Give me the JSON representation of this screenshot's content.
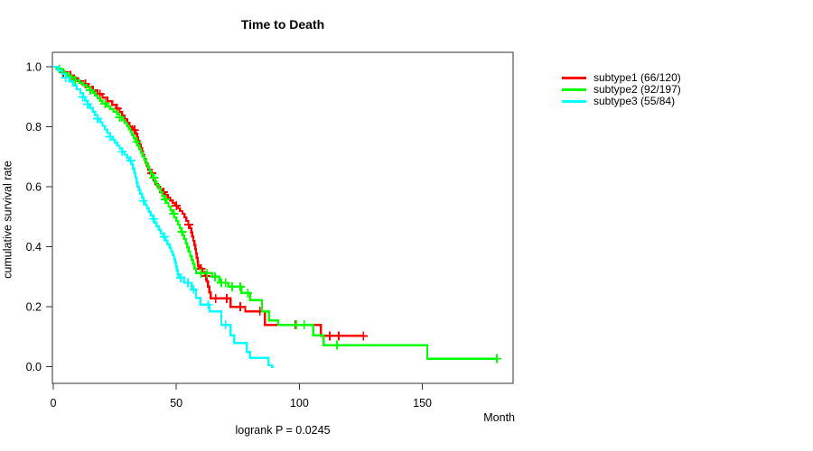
{
  "title": "Time to Death",
  "x_axis": {
    "label": "Month",
    "ticks": [
      0,
      50,
      100,
      150
    ]
  },
  "y_axis": {
    "label": "cumulative survival rate",
    "ticks": [
      0.0,
      0.2,
      0.4,
      0.6,
      0.8,
      1.0
    ]
  },
  "footer": "logrank P = 0.0245",
  "colors": {
    "axis": "#333333",
    "text": "#000000"
  },
  "chart_data": {
    "type": "line",
    "variant": "kaplan-meier-step",
    "title": "Time to Death",
    "xlabel": "Month",
    "ylabel": "cumulative survival rate",
    "xlim": [
      0,
      187
    ],
    "ylim": [
      0.0,
      1.0
    ],
    "x_ticks": [
      0,
      50,
      100,
      150
    ],
    "y_ticks": [
      0.0,
      0.2,
      0.4,
      0.6,
      0.8,
      1.0
    ],
    "annotation": "logrank P = 0.0245",
    "legend_position": "right-outside",
    "grid": false,
    "series": [
      {
        "name": "subtype1 (66/120)",
        "color": "#FF0000",
        "steps": [
          [
            0,
            1
          ],
          [
            2,
            0.99
          ],
          [
            4,
            0.981
          ],
          [
            6,
            0.971
          ],
          [
            8,
            0.962
          ],
          [
            10,
            0.952
          ],
          [
            12,
            0.943
          ],
          [
            14,
            0.933
          ],
          [
            16,
            0.921
          ],
          [
            18,
            0.909
          ],
          [
            20,
            0.897
          ],
          [
            22,
            0.885
          ],
          [
            24,
            0.873
          ],
          [
            25.5,
            0.861
          ],
          [
            27,
            0.849
          ],
          [
            28,
            0.837
          ],
          [
            29,
            0.825
          ],
          [
            30,
            0.813
          ],
          [
            31,
            0.801
          ],
          [
            32,
            0.795
          ],
          [
            33,
            0.789
          ],
          [
            33.5,
            0.777
          ],
          [
            34,
            0.765
          ],
          [
            34.5,
            0.753
          ],
          [
            35,
            0.741
          ],
          [
            35.5,
            0.729
          ],
          [
            36,
            0.717
          ],
          [
            36.5,
            0.705
          ],
          [
            37,
            0.693
          ],
          [
            37.5,
            0.681
          ],
          [
            38,
            0.669
          ],
          [
            38.7,
            0.657
          ],
          [
            39.4,
            0.645
          ],
          [
            40.1,
            0.633
          ],
          [
            40.8,
            0.621
          ],
          [
            41.5,
            0.609
          ],
          [
            42.5,
            0.6
          ],
          [
            43.5,
            0.591
          ],
          [
            44.5,
            0.582
          ],
          [
            45.5,
            0.573
          ],
          [
            46.5,
            0.564
          ],
          [
            47.5,
            0.555
          ],
          [
            48.5,
            0.546
          ],
          [
            49.5,
            0.537
          ],
          [
            50.5,
            0.528
          ],
          [
            51.5,
            0.519
          ],
          [
            52.5,
            0.51
          ],
          [
            53.3,
            0.498
          ],
          [
            54.1,
            0.486
          ],
          [
            54.9,
            0.474
          ],
          [
            55.6,
            0.462
          ],
          [
            56.1,
            0.448
          ],
          [
            56.5,
            0.434
          ],
          [
            56.9,
            0.42
          ],
          [
            57.3,
            0.406
          ],
          [
            57.7,
            0.392
          ],
          [
            58,
            0.378
          ],
          [
            58.3,
            0.364
          ],
          [
            58.6,
            0.35
          ],
          [
            58.9,
            0.336
          ],
          [
            59.2,
            0.327
          ],
          [
            60.5,
            0.315
          ],
          [
            61.7,
            0.303
          ],
          [
            62.3,
            0.285
          ],
          [
            62.9,
            0.267
          ],
          [
            63.4,
            0.248
          ],
          [
            64,
            0.228
          ],
          [
            72,
            0.2
          ],
          [
            78,
            0.185
          ],
          [
            86,
            0.14
          ],
          [
            108.7,
            0.103
          ]
        ],
        "censors": [
          [
            4,
            0.981
          ],
          [
            7,
            0.971
          ],
          [
            13,
            0.943
          ],
          [
            19,
            0.909
          ],
          [
            26,
            0.861
          ],
          [
            33,
            0.789
          ],
          [
            40,
            0.645
          ],
          [
            44.8,
            0.582
          ],
          [
            50,
            0.537
          ],
          [
            55,
            0.474
          ],
          [
            60,
            0.327
          ],
          [
            62,
            0.303
          ],
          [
            66,
            0.228
          ],
          [
            70.5,
            0.228
          ],
          [
            76,
            0.2
          ],
          [
            84,
            0.185
          ],
          [
            98.4,
            0.14
          ],
          [
            112.3,
            0.103
          ],
          [
            116,
            0.103
          ]
        ],
        "end_month": 126,
        "end_censor": true
      },
      {
        "name": "subtype2 (92/197)",
        "color": "#00FF00",
        "steps": [
          [
            0,
            1
          ],
          [
            1.5,
            0.993
          ],
          [
            3,
            0.986
          ],
          [
            4.5,
            0.979
          ],
          [
            6,
            0.971
          ],
          [
            7.5,
            0.963
          ],
          [
            9,
            0.955
          ],
          [
            10.5,
            0.947
          ],
          [
            12,
            0.939
          ],
          [
            13.5,
            0.931
          ],
          [
            15,
            0.922
          ],
          [
            16,
            0.913
          ],
          [
            17,
            0.904
          ],
          [
            18,
            0.895
          ],
          [
            19,
            0.886
          ],
          [
            20,
            0.877
          ],
          [
            21.5,
            0.868
          ],
          [
            23,
            0.859
          ],
          [
            24.5,
            0.85
          ],
          [
            26,
            0.841
          ],
          [
            27,
            0.832
          ],
          [
            28,
            0.822
          ],
          [
            29,
            0.812
          ],
          [
            30,
            0.802
          ],
          [
            30.7,
            0.792
          ],
          [
            31.4,
            0.782
          ],
          [
            32.1,
            0.772
          ],
          [
            32.8,
            0.762
          ],
          [
            33.5,
            0.75
          ],
          [
            34.2,
            0.738
          ],
          [
            34.9,
            0.726
          ],
          [
            35.6,
            0.714
          ],
          [
            36.3,
            0.702
          ],
          [
            37,
            0.69
          ],
          [
            37.7,
            0.678
          ],
          [
            38.4,
            0.666
          ],
          [
            39.1,
            0.654
          ],
          [
            39.8,
            0.642
          ],
          [
            40.5,
            0.63
          ],
          [
            41.2,
            0.618
          ],
          [
            42,
            0.606
          ],
          [
            42.8,
            0.594
          ],
          [
            43.6,
            0.582
          ],
          [
            44.4,
            0.57
          ],
          [
            45.2,
            0.558
          ],
          [
            46,
            0.546
          ],
          [
            46.8,
            0.534
          ],
          [
            47.6,
            0.522
          ],
          [
            48.4,
            0.51
          ],
          [
            49.2,
            0.498
          ],
          [
            50,
            0.486
          ],
          [
            50.7,
            0.474
          ],
          [
            51.4,
            0.462
          ],
          [
            52,
            0.45
          ],
          [
            52.6,
            0.438
          ],
          [
            53.2,
            0.426
          ],
          [
            53.8,
            0.412
          ],
          [
            54.4,
            0.398
          ],
          [
            55,
            0.384
          ],
          [
            55.6,
            0.37
          ],
          [
            56.2,
            0.356
          ],
          [
            56.8,
            0.342
          ],
          [
            57.4,
            0.328
          ],
          [
            58,
            0.312
          ],
          [
            64.6,
            0.3
          ],
          [
            67.5,
            0.28
          ],
          [
            71.2,
            0.267
          ],
          [
            76.4,
            0.246
          ],
          [
            80,
            0.222
          ],
          [
            84.8,
            0.185
          ],
          [
            87.7,
            0.155
          ],
          [
            91.4,
            0.14
          ],
          [
            105.7,
            0.105
          ],
          [
            109.8,
            0.072
          ],
          [
            152,
            0.027
          ]
        ],
        "censors": [
          [
            2.5,
            0.993
          ],
          [
            9,
            0.955
          ],
          [
            15,
            0.922
          ],
          [
            21,
            0.877
          ],
          [
            27,
            0.832
          ],
          [
            34,
            0.75
          ],
          [
            41,
            0.63
          ],
          [
            45.5,
            0.558
          ],
          [
            49,
            0.51
          ],
          [
            52.3,
            0.45
          ],
          [
            60,
            0.312
          ],
          [
            62.5,
            0.312
          ],
          [
            65.7,
            0.3
          ],
          [
            68.3,
            0.28
          ],
          [
            70,
            0.28
          ],
          [
            72.7,
            0.267
          ],
          [
            76,
            0.267
          ],
          [
            79,
            0.246
          ],
          [
            98.7,
            0.14
          ],
          [
            102,
            0.14
          ],
          [
            115.3,
            0.072
          ]
        ],
        "end_month": 180.2,
        "end_censor": true
      },
      {
        "name": "subtype3 (55/84)",
        "color": "#00FFFF",
        "steps": [
          [
            0,
            1
          ],
          [
            2,
            0.988
          ],
          [
            3.5,
            0.976
          ],
          [
            5,
            0.964
          ],
          [
            6.5,
            0.951
          ],
          [
            8,
            0.938
          ],
          [
            9.5,
            0.925
          ],
          [
            11,
            0.912
          ],
          [
            12,
            0.899
          ],
          [
            13,
            0.887
          ],
          [
            14,
            0.875
          ],
          [
            15,
            0.863
          ],
          [
            16,
            0.851
          ],
          [
            17,
            0.839
          ],
          [
            18,
            0.827
          ],
          [
            19,
            0.815
          ],
          [
            20,
            0.803
          ],
          [
            21,
            0.791
          ],
          [
            22,
            0.779
          ],
          [
            23,
            0.767
          ],
          [
            24,
            0.757
          ],
          [
            25,
            0.747
          ],
          [
            26,
            0.737
          ],
          [
            27,
            0.727
          ],
          [
            28,
            0.717
          ],
          [
            29,
            0.707
          ],
          [
            30,
            0.697
          ],
          [
            31,
            0.687
          ],
          [
            31.8,
            0.675
          ],
          [
            32.4,
            0.66
          ],
          [
            33,
            0.645
          ],
          [
            33.4,
            0.63
          ],
          [
            33.8,
            0.615
          ],
          [
            34.3,
            0.601
          ],
          [
            34.8,
            0.589
          ],
          [
            35.4,
            0.577
          ],
          [
            36,
            0.565
          ],
          [
            36.6,
            0.553
          ],
          [
            37.2,
            0.541
          ],
          [
            38,
            0.529
          ],
          [
            38.8,
            0.517
          ],
          [
            39.6,
            0.505
          ],
          [
            40.4,
            0.493
          ],
          [
            41.2,
            0.481
          ],
          [
            42,
            0.469
          ],
          [
            42.9,
            0.457
          ],
          [
            43.8,
            0.445
          ],
          [
            44.7,
            0.433
          ],
          [
            45.6,
            0.421
          ],
          [
            46.4,
            0.409
          ],
          [
            47.2,
            0.397
          ],
          [
            47.9,
            0.385
          ],
          [
            48.5,
            0.373
          ],
          [
            49,
            0.361
          ],
          [
            49.4,
            0.349
          ],
          [
            49.8,
            0.335
          ],
          [
            50.2,
            0.321
          ],
          [
            50.6,
            0.308
          ],
          [
            51,
            0.297
          ],
          [
            53.2,
            0.28
          ],
          [
            56.2,
            0.257
          ],
          [
            58,
            0.23
          ],
          [
            59.8,
            0.207
          ],
          [
            63.5,
            0.185
          ],
          [
            68.3,
            0.14
          ],
          [
            72,
            0.105
          ],
          [
            73.5,
            0.08
          ],
          [
            78.6,
            0.05
          ],
          [
            80,
            0.03
          ],
          [
            87.4,
            0.005
          ],
          [
            89,
            0
          ]
        ],
        "censors": [
          [
            5,
            0.964
          ],
          [
            12,
            0.899
          ],
          [
            14,
            0.875
          ],
          [
            18,
            0.827
          ],
          [
            23,
            0.767
          ],
          [
            28,
            0.717
          ],
          [
            31.5,
            0.687
          ],
          [
            36.6,
            0.553
          ],
          [
            40.7,
            0.493
          ],
          [
            45.2,
            0.433
          ],
          [
            51.8,
            0.297
          ],
          [
            54.7,
            0.28
          ],
          [
            57,
            0.257
          ],
          [
            63,
            0.207
          ],
          [
            70,
            0.14
          ]
        ],
        "end_month": 89.5,
        "end_censor": false
      }
    ]
  }
}
